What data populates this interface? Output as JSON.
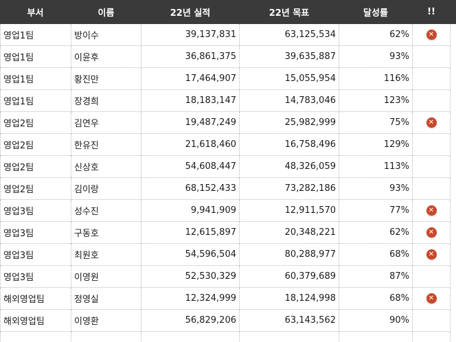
{
  "headers": [
    "부서",
    "이름",
    "22년 실적",
    "22년 목표",
    "달성률",
    "!!"
  ],
  "rows": [
    {
      "dept": "영업1팀",
      "name": "방이수",
      "actual": "39,137,831",
      "target": "63,125,534",
      "rate": "62%",
      "flag": true
    },
    {
      "dept": "영업1팀",
      "name": "이윤후",
      "actual": "36,861,375",
      "target": "39,635,887",
      "rate": "93%",
      "flag": false
    },
    {
      "dept": "영업1팀",
      "name": "황진만",
      "actual": "17,464,907",
      "target": "15,055,954",
      "rate": "116%",
      "flag": false
    },
    {
      "dept": "영업1팀",
      "name": "장경희",
      "actual": "18,183,147",
      "target": "14,783,046",
      "rate": "123%",
      "flag": false
    },
    {
      "dept": "영업2팀",
      "name": "김연우",
      "actual": "19,487,249",
      "target": "25,982,999",
      "rate": "75%",
      "flag": true
    },
    {
      "dept": "영업2팀",
      "name": "한유진",
      "actual": "21,618,460",
      "target": "16,758,496",
      "rate": "129%",
      "flag": false
    },
    {
      "dept": "영업2팀",
      "name": "신상호",
      "actual": "54,608,447",
      "target": "48,326,059",
      "rate": "113%",
      "flag": false
    },
    {
      "dept": "영업2팀",
      "name": "김이랑",
      "actual": "68,152,433",
      "target": "73,282,186",
      "rate": "93%",
      "flag": false
    },
    {
      "dept": "영업3팀",
      "name": "성수진",
      "actual": "9,941,909",
      "target": "12,911,570",
      "rate": "77%",
      "flag": true
    },
    {
      "dept": "영업3팀",
      "name": "구동호",
      "actual": "12,615,897",
      "target": "20,348,221",
      "rate": "62%",
      "flag": true
    },
    {
      "dept": "영업3팀",
      "name": "최원호",
      "actual": "54,596,504",
      "target": "80,288,977",
      "rate": "68%",
      "flag": true
    },
    {
      "dept": "영업3팀",
      "name": "이영원",
      "actual": "52,530,329",
      "target": "60,379,689",
      "rate": "87%",
      "flag": false
    },
    {
      "dept": "해외영업팀",
      "name": "정영실",
      "actual": "12,324,999",
      "target": "18,124,998",
      "rate": "68%",
      "flag": true
    },
    {
      "dept": "해외영업팀",
      "name": "이영환",
      "actual": "56,829,206",
      "target": "63,143,562",
      "rate": "90%",
      "flag": false
    }
  ],
  "flag_icon": "x-circle-icon",
  "colors": {
    "header_bg": "#3a3a3a",
    "header_text": "#ffffff",
    "flag": "#c9482a",
    "grid": "#b8b8b8"
  }
}
